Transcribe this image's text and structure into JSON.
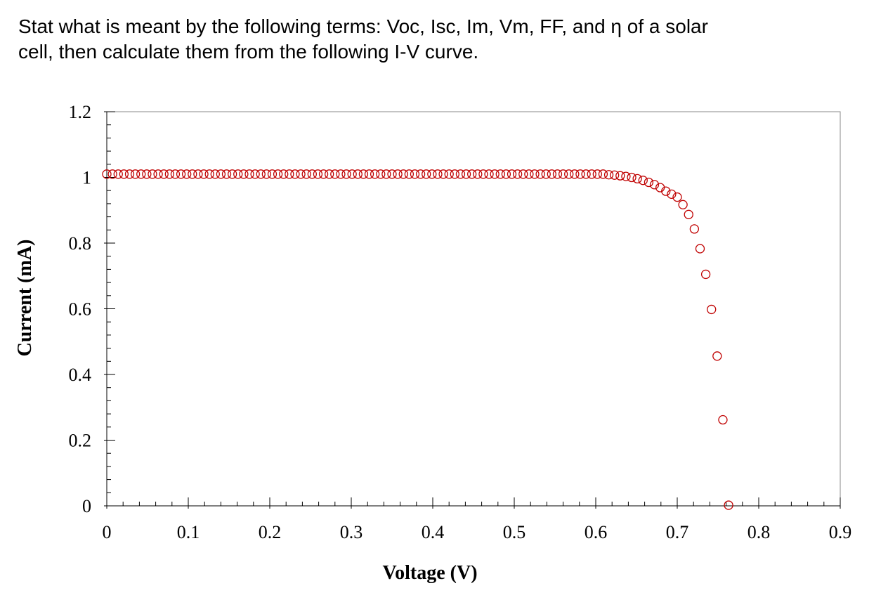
{
  "question": {
    "line1": "Stat what is meant by the following terms: Voc, Isc, Im, Vm, FF, and η of a solar",
    "line2": "cell, then calculate them from the following I-V curve."
  },
  "chart_data": {
    "type": "scatter",
    "title": "",
    "xlabel": "Voltage (V)",
    "ylabel": "Current (mA)",
    "xlim": [
      0,
      0.9
    ],
    "ylim": [
      0,
      1.2
    ],
    "x_major_ticks": [
      0,
      0.1,
      0.2,
      0.3,
      0.4,
      0.5,
      0.6,
      0.7,
      0.8,
      0.9
    ],
    "x_tick_labels": [
      "0",
      "0.1",
      "0.2",
      "0.3",
      "0.4",
      "0.5",
      "0.6",
      "0.7",
      "0.8",
      "0.9"
    ],
    "y_major_ticks": [
      0,
      0.2,
      0.4,
      0.6,
      0.8,
      1,
      1.2
    ],
    "y_tick_labels": [
      "0",
      "0.2",
      "0.4",
      "0.6",
      "0.8",
      "1",
      "1.2"
    ],
    "x_minor_step": 0.02,
    "y_minor_step": 0.04,
    "grid": false,
    "legend": "none",
    "marker": "open-circle",
    "marker_color": "#c00000",
    "points": [
      [
        0.0,
        1.01
      ],
      [
        0.007,
        1.01
      ],
      [
        0.014,
        1.01
      ],
      [
        0.021,
        1.01
      ],
      [
        0.028,
        1.01
      ],
      [
        0.035,
        1.01
      ],
      [
        0.042,
        1.01
      ],
      [
        0.049,
        1.01
      ],
      [
        0.056,
        1.01
      ],
      [
        0.063,
        1.01
      ],
      [
        0.07,
        1.01
      ],
      [
        0.077,
        1.01
      ],
      [
        0.084,
        1.01
      ],
      [
        0.091,
        1.01
      ],
      [
        0.098,
        1.01
      ],
      [
        0.105,
        1.01
      ],
      [
        0.112,
        1.01
      ],
      [
        0.119,
        1.01
      ],
      [
        0.126,
        1.01
      ],
      [
        0.133,
        1.01
      ],
      [
        0.14,
        1.01
      ],
      [
        0.147,
        1.01
      ],
      [
        0.154,
        1.01
      ],
      [
        0.161,
        1.01
      ],
      [
        0.168,
        1.01
      ],
      [
        0.175,
        1.01
      ],
      [
        0.182,
        1.01
      ],
      [
        0.189,
        1.01
      ],
      [
        0.196,
        1.01
      ],
      [
        0.203,
        1.01
      ],
      [
        0.21,
        1.01
      ],
      [
        0.217,
        1.01
      ],
      [
        0.224,
        1.01
      ],
      [
        0.231,
        1.01
      ],
      [
        0.238,
        1.01
      ],
      [
        0.245,
        1.01
      ],
      [
        0.252,
        1.01
      ],
      [
        0.259,
        1.01
      ],
      [
        0.266,
        1.01
      ],
      [
        0.273,
        1.01
      ],
      [
        0.28,
        1.01
      ],
      [
        0.287,
        1.01
      ],
      [
        0.294,
        1.01
      ],
      [
        0.301,
        1.01
      ],
      [
        0.308,
        1.01
      ],
      [
        0.315,
        1.01
      ],
      [
        0.322,
        1.01
      ],
      [
        0.329,
        1.01
      ],
      [
        0.336,
        1.01
      ],
      [
        0.343,
        1.01
      ],
      [
        0.35,
        1.01
      ],
      [
        0.357,
        1.01
      ],
      [
        0.364,
        1.01
      ],
      [
        0.371,
        1.01
      ],
      [
        0.378,
        1.01
      ],
      [
        0.385,
        1.01
      ],
      [
        0.392,
        1.01
      ],
      [
        0.399,
        1.01
      ],
      [
        0.406,
        1.01
      ],
      [
        0.413,
        1.01
      ],
      [
        0.42,
        1.01
      ],
      [
        0.427,
        1.01
      ],
      [
        0.434,
        1.01
      ],
      [
        0.441,
        1.01
      ],
      [
        0.448,
        1.01
      ],
      [
        0.455,
        1.01
      ],
      [
        0.462,
        1.01
      ],
      [
        0.469,
        1.01
      ],
      [
        0.476,
        1.01
      ],
      [
        0.483,
        1.01
      ],
      [
        0.49,
        1.01
      ],
      [
        0.497,
        1.01
      ],
      [
        0.504,
        1.01
      ],
      [
        0.511,
        1.01
      ],
      [
        0.518,
        1.01
      ],
      [
        0.525,
        1.01
      ],
      [
        0.532,
        1.01
      ],
      [
        0.539,
        1.01
      ],
      [
        0.546,
        1.01
      ],
      [
        0.553,
        1.01
      ],
      [
        0.56,
        1.01
      ],
      [
        0.567,
        1.01
      ],
      [
        0.574,
        1.01
      ],
      [
        0.581,
        1.01
      ],
      [
        0.588,
        1.01
      ],
      [
        0.595,
        1.01
      ],
      [
        0.602,
        1.01
      ],
      [
        0.609,
        1.01
      ],
      [
        0.616,
        1.008
      ],
      [
        0.623,
        1.007
      ],
      [
        0.63,
        1.005
      ],
      [
        0.637,
        1.003
      ],
      [
        0.644,
        1.0
      ],
      [
        0.651,
        0.996
      ],
      [
        0.658,
        0.991
      ],
      [
        0.665,
        0.985
      ],
      [
        0.672,
        0.978
      ],
      [
        0.679,
        0.969
      ],
      [
        0.686,
        0.958
      ],
      [
        0.693,
        0.949
      ],
      [
        0.7,
        0.94
      ],
      [
        0.707,
        0.917
      ],
      [
        0.714,
        0.887
      ],
      [
        0.721,
        0.843
      ],
      [
        0.728,
        0.783
      ],
      [
        0.735,
        0.705
      ],
      [
        0.742,
        0.598
      ],
      [
        0.749,
        0.456
      ],
      [
        0.756,
        0.262
      ],
      [
        0.763,
        0.002
      ]
    ]
  }
}
